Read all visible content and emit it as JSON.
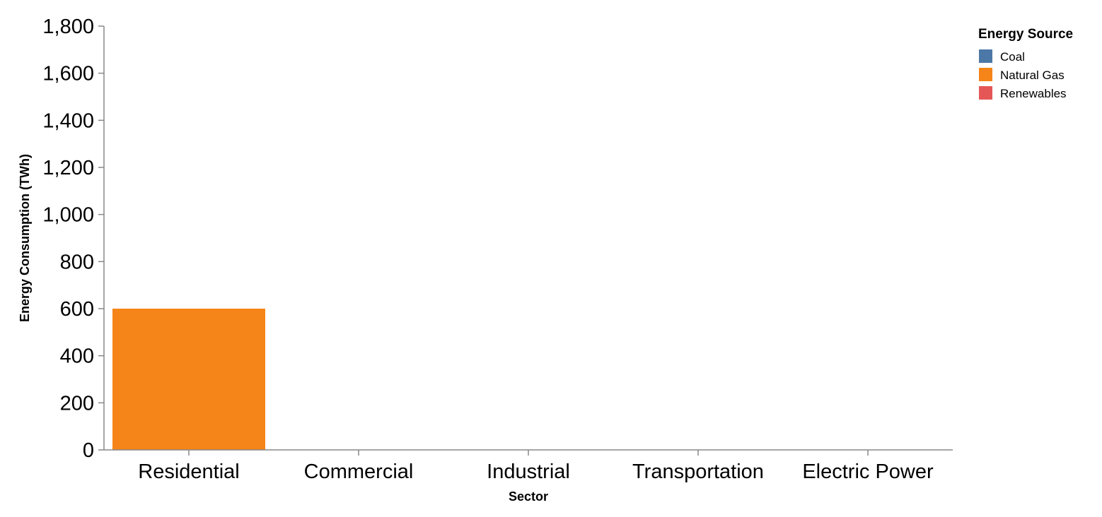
{
  "chart_data": {
    "type": "bar",
    "categories": [
      "Residential",
      "Commercial",
      "Industrial",
      "Transportation",
      "Electric Power"
    ],
    "series": [
      {
        "name": "Coal",
        "values": [
          0,
          0,
          0,
          0,
          0
        ],
        "color": "#4c78a8"
      },
      {
        "name": "Natural Gas",
        "values": [
          600,
          0,
          0,
          0,
          0
        ],
        "color": "#f58518"
      },
      {
        "name": "Renewables",
        "values": [
          0,
          0,
          0,
          0,
          0
        ],
        "color": "#e45756"
      }
    ],
    "xlabel": "Sector",
    "ylabel": "Energy Consumption (TWh)",
    "ylim": [
      0,
      1800
    ],
    "yticks": [
      0,
      200,
      400,
      600,
      800,
      1000,
      1200,
      1400,
      1600,
      1800
    ],
    "grid": false,
    "legend": {
      "title": "Energy Source",
      "position": "top-right"
    }
  }
}
